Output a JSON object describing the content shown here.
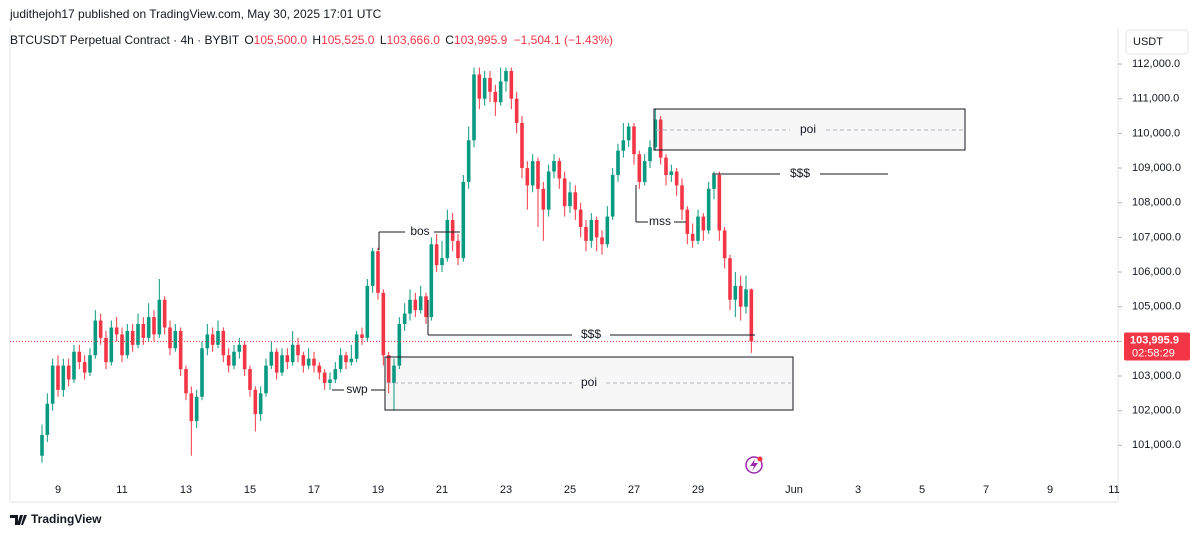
{
  "publish_line": "judithejoh17 published on TradingView.com, May 30, 2025 17:01 UTC",
  "symbol": "BTCUSDT Perpetual Contract · 4h · BYBIT",
  "ohlc_header": [
    {
      "label": "O",
      "value": "105,500.0"
    },
    {
      "label": "H",
      "value": "105,525.0"
    },
    {
      "label": "L",
      "value": "103,666.0"
    },
    {
      "label": "C",
      "value": "103,995.9"
    }
  ],
  "change": "−1,504.1 (−1.43%)",
  "currency": "USDT",
  "logo": "TradingView",
  "chart_data": {
    "type": "candlestick",
    "up_color": "#089981",
    "down_color": "#f23645",
    "ylim": [
      100000,
      113040
    ],
    "yticks": [
      {
        "value": 101000,
        "label": "101,000.0"
      },
      {
        "value": 102000,
        "label": "102,000.0"
      },
      {
        "value": 103000,
        "label": "103,000.0"
      },
      {
        "value": 104000,
        "label": "104,000.0"
      },
      {
        "value": 105000,
        "label": "105,000.0"
      },
      {
        "value": 106000,
        "label": "106,000.0"
      },
      {
        "value": 107000,
        "label": "107,000.0"
      },
      {
        "value": 108000,
        "label": "108,000.0"
      },
      {
        "value": 109000,
        "label": "109,000.0"
      },
      {
        "value": 110000,
        "label": "110,000.0"
      },
      {
        "value": 111000,
        "label": "111,000.0"
      },
      {
        "value": 112000,
        "label": "112,000.0"
      }
    ],
    "xticks": [
      {
        "value": "2025-05-09",
        "label": "9"
      },
      {
        "value": "2025-05-11",
        "label": "11"
      },
      {
        "value": "2025-05-13",
        "label": "13"
      },
      {
        "value": "2025-05-15",
        "label": "15"
      },
      {
        "value": "2025-05-17",
        "label": "17"
      },
      {
        "value": "2025-05-19",
        "label": "19"
      },
      {
        "value": "2025-05-21",
        "label": "21"
      },
      {
        "value": "2025-05-23",
        "label": "23"
      },
      {
        "value": "2025-05-25",
        "label": "25"
      },
      {
        "value": "2025-05-27",
        "label": "27"
      },
      {
        "value": "2025-05-29",
        "label": "29"
      },
      {
        "value": "2025-06-01",
        "label": "Jun"
      },
      {
        "value": "2025-06-03",
        "label": "3"
      },
      {
        "value": "2025-06-05",
        "label": "5"
      },
      {
        "value": "2025-06-07",
        "label": "7"
      },
      {
        "value": "2025-06-09",
        "label": "9"
      },
      {
        "value": "2025-06-11",
        "label": "11"
      }
    ],
    "last_price": 103995.9,
    "last_price_label": "103,995.9",
    "countdown": "02:58:29",
    "annotations": [
      "bos",
      "$$$",
      "mss",
      "$$$",
      "poi",
      "poi",
      "swp"
    ],
    "ohlc": [
      [
        100700,
        101600,
        100500,
        101300
      ],
      [
        101300,
        102500,
        101100,
        102200
      ],
      [
        102200,
        103500,
        102000,
        103300
      ],
      [
        103300,
        103600,
        102400,
        102600
      ],
      [
        102600,
        103500,
        102400,
        103300
      ],
      [
        103300,
        103500,
        102700,
        102900
      ],
      [
        102900,
        103900,
        102800,
        103700
      ],
      [
        103700,
        103900,
        103200,
        103400
      ],
      [
        103400,
        103600,
        102900,
        103100
      ],
      [
        103100,
        103800,
        103000,
        103600
      ],
      [
        103600,
        104900,
        103500,
        104600
      ],
      [
        104600,
        104800,
        103900,
        104100
      ],
      [
        104100,
        104300,
        103200,
        103400
      ],
      [
        103400,
        104600,
        103300,
        104400
      ],
      [
        104400,
        104700,
        104000,
        104200
      ],
      [
        104200,
        104400,
        103400,
        103600
      ],
      [
        103600,
        104500,
        103500,
        104300
      ],
      [
        104300,
        104500,
        103700,
        103900
      ],
      [
        103900,
        104800,
        103800,
        104500
      ],
      [
        104500,
        104700,
        103900,
        104100
      ],
      [
        104100,
        105100,
        104000,
        104700
      ],
      [
        104700,
        104900,
        104000,
        104200
      ],
      [
        104200,
        105800,
        104100,
        105200
      ],
      [
        105200,
        105300,
        104200,
        104400
      ],
      [
        104400,
        104600,
        103600,
        103800
      ],
      [
        103800,
        104500,
        103700,
        104300
      ],
      [
        104300,
        104400,
        103000,
        103200
      ],
      [
        103200,
        103300,
        102300,
        102500
      ],
      [
        102500,
        102700,
        100700,
        101700
      ],
      [
        101700,
        102600,
        101500,
        102400
      ],
      [
        102400,
        104000,
        102300,
        103800
      ],
      [
        103800,
        104500,
        103600,
        104200
      ],
      [
        104200,
        104400,
        103700,
        103900
      ],
      [
        103900,
        104600,
        103800,
        104300
      ],
      [
        104300,
        104400,
        103400,
        103600
      ],
      [
        103600,
        103800,
        103100,
        103300
      ],
      [
        103300,
        103900,
        103200,
        103700
      ],
      [
        103700,
        104100,
        103500,
        103900
      ],
      [
        103900,
        104000,
        103000,
        103200
      ],
      [
        103200,
        103300,
        102400,
        102600
      ],
      [
        102600,
        102700,
        101400,
        101900
      ],
      [
        101900,
        102700,
        101700,
        102500
      ],
      [
        102500,
        103500,
        102400,
        103300
      ],
      [
        103300,
        104000,
        103200,
        103700
      ],
      [
        103700,
        103800,
        102900,
        103100
      ],
      [
        103100,
        103800,
        103000,
        103600
      ],
      [
        103600,
        103800,
        103200,
        103400
      ],
      [
        103400,
        104300,
        103300,
        103900
      ],
      [
        103900,
        104100,
        103400,
        103600
      ],
      [
        103600,
        103700,
        103100,
        103300
      ],
      [
        103300,
        103800,
        103200,
        103500
      ],
      [
        103500,
        103700,
        103100,
        103300
      ],
      [
        103300,
        103400,
        102900,
        103100
      ],
      [
        103100,
        103200,
        102600,
        102800
      ],
      [
        102800,
        103100,
        102600,
        102900
      ],
      [
        102900,
        103400,
        102800,
        103200
      ],
      [
        103200,
        103800,
        103100,
        103600
      ],
      [
        103600,
        103700,
        103200,
        103400
      ],
      [
        103400,
        103900,
        103300,
        103500
      ],
      [
        103500,
        104300,
        103400,
        104200
      ],
      [
        104200,
        104400,
        103900,
        104100
      ],
      [
        104100,
        105800,
        104000,
        105600
      ],
      [
        105600,
        106700,
        105400,
        106600
      ],
      [
        106600,
        106700,
        105200,
        105400
      ],
      [
        105400,
        105500,
        103300,
        103600
      ],
      [
        103600,
        103700,
        102500,
        102800
      ],
      [
        102800,
        103500,
        102000,
        103300
      ],
      [
        103300,
        104700,
        103200,
        104500
      ],
      [
        104500,
        105100,
        104300,
        104800
      ],
      [
        104800,
        105500,
        104600,
        105200
      ],
      [
        105200,
        105400,
        104700,
        104900
      ],
      [
        104900,
        105600,
        104800,
        105300
      ],
      [
        105300,
        105400,
        104500,
        104700
      ],
      [
        104700,
        107000,
        104600,
        106800
      ],
      [
        106800,
        107100,
        106000,
        106200
      ],
      [
        106200,
        106900,
        106000,
        106400
      ],
      [
        106400,
        107800,
        106300,
        107500
      ],
      [
        107500,
        107700,
        106600,
        106900
      ],
      [
        106900,
        107100,
        106200,
        106400
      ],
      [
        106400,
        108800,
        106300,
        108600
      ],
      [
        108600,
        110200,
        108400,
        109800
      ],
      [
        109800,
        111900,
        109600,
        111700
      ],
      [
        111700,
        111900,
        110700,
        111000
      ],
      [
        111000,
        111800,
        110800,
        111600
      ],
      [
        111600,
        111800,
        110900,
        111200
      ],
      [
        111200,
        111400,
        110500,
        110900
      ],
      [
        110900,
        111900,
        110800,
        111500
      ],
      [
        111500,
        111900,
        111200,
        111800
      ],
      [
        111800,
        111900,
        110700,
        111000
      ],
      [
        111000,
        111200,
        110000,
        110300
      ],
      [
        110300,
        110500,
        108700,
        109000
      ],
      [
        109000,
        109200,
        107800,
        108500
      ],
      [
        108500,
        109400,
        108300,
        109200
      ],
      [
        109200,
        109300,
        107300,
        108400
      ],
      [
        108400,
        108600,
        106900,
        107800
      ],
      [
        107800,
        109100,
        107600,
        108900
      ],
      [
        108900,
        109400,
        108700,
        109200
      ],
      [
        109200,
        109300,
        108400,
        108700
      ],
      [
        108700,
        108900,
        107600,
        107900
      ],
      [
        107900,
        108600,
        107700,
        108300
      ],
      [
        108300,
        108500,
        107500,
        107800
      ],
      [
        107800,
        108000,
        107000,
        107300
      ],
      [
        107300,
        107500,
        106600,
        106900
      ],
      [
        106900,
        107700,
        106700,
        107500
      ],
      [
        107500,
        107600,
        106600,
        107000
      ],
      [
        107000,
        107200,
        106500,
        106800
      ],
      [
        106800,
        107900,
        106700,
        107600
      ],
      [
        107600,
        109000,
        107500,
        108800
      ],
      [
        108800,
        109700,
        108600,
        109500
      ],
      [
        109500,
        110300,
        109300,
        109800
      ],
      [
        109800,
        110300,
        109600,
        110200
      ],
      [
        110200,
        110300,
        109100,
        109400
      ],
      [
        109400,
        109500,
        108400,
        108600
      ],
      [
        108600,
        109400,
        108500,
        109200
      ],
      [
        109200,
        109800,
        109000,
        109600
      ],
      [
        109600,
        110700,
        109500,
        110400
      ],
      [
        110400,
        110500,
        109100,
        109300
      ],
      [
        109300,
        109400,
        108500,
        108800
      ],
      [
        108800,
        109100,
        108600,
        108900
      ],
      [
        108900,
        109000,
        108200,
        108500
      ],
      [
        108500,
        108700,
        107500,
        107800
      ],
      [
        107800,
        107900,
        106800,
        107100
      ],
      [
        107100,
        107400,
        106700,
        106900
      ],
      [
        106900,
        107800,
        106800,
        107600
      ],
      [
        107600,
        107700,
        106900,
        107200
      ],
      [
        107200,
        108600,
        107100,
        108400
      ],
      [
        108400,
        108900,
        108100,
        108800
      ],
      [
        108800,
        108900,
        106900,
        107200
      ],
      [
        107200,
        107300,
        106100,
        106400
      ],
      [
        106400,
        106500,
        104900,
        105200
      ],
      [
        105200,
        106000,
        104700,
        105600
      ],
      [
        105600,
        105900,
        104600,
        105000
      ],
      [
        105000,
        105900,
        104800,
        105500
      ],
      [
        105500,
        105525,
        103666,
        103995.9
      ]
    ]
  }
}
